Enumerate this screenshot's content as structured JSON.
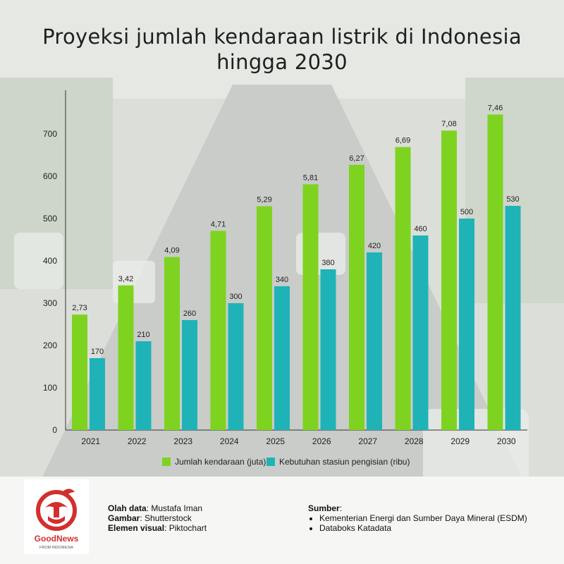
{
  "title": "Proyeksi jumlah kendaraan listrik di Indonesia hingga 2030",
  "colors": {
    "green": "#7ed321",
    "teal": "#1fb3b8",
    "text": "#1f1f1f",
    "brand_red": "#d32f2f"
  },
  "chart_data": {
    "type": "bar",
    "categories": [
      "2021",
      "2022",
      "2023",
      "2024",
      "2025",
      "2026",
      "2027",
      "2028",
      "2029",
      "2030"
    ],
    "ylim": [
      0,
      700
    ],
    "yticks": [
      0,
      100,
      200,
      300,
      400,
      500,
      600,
      700
    ],
    "grid": false,
    "legend_position": "bottom",
    "series": [
      {
        "name": "Jumlah kendaraan (juta)",
        "color": "#7ed321",
        "values": [
          2.73,
          3.42,
          4.09,
          4.71,
          5.29,
          5.81,
          6.27,
          6.69,
          7.08,
          7.46
        ],
        "labels": [
          "2,73",
          "3,42",
          "4,09",
          "4,71",
          "5,29",
          "5,81",
          "6,27",
          "6,69",
          "7,08",
          "7,46"
        ]
      },
      {
        "name": "Kebutuhan stasiun pengisian (ribu)",
        "color": "#1fb3b8",
        "values": [
          170,
          210,
          260,
          300,
          340,
          380,
          420,
          460,
          500,
          530
        ],
        "labels": [
          "170",
          "210",
          "260",
          "300",
          "340",
          "380",
          "420",
          "460",
          "500",
          "530"
        ]
      }
    ]
  },
  "credits": {
    "data_label": "Olah data",
    "data_value": ": Mustafa Iman",
    "image_label": "Gambar",
    "image_value": ": Shutterstock",
    "visual_label": "Elemen visual",
    "visual_value": ": Piktochart"
  },
  "sources": {
    "heading": "Sumber",
    "heading_suffix": ":",
    "items": [
      "Kementerian Energi dan Sumber Daya Mineral (ESDM)",
      "Databoks Katadata"
    ]
  },
  "logo": {
    "name": "GoodNews",
    "tagline": "FROM INDONESIA"
  }
}
